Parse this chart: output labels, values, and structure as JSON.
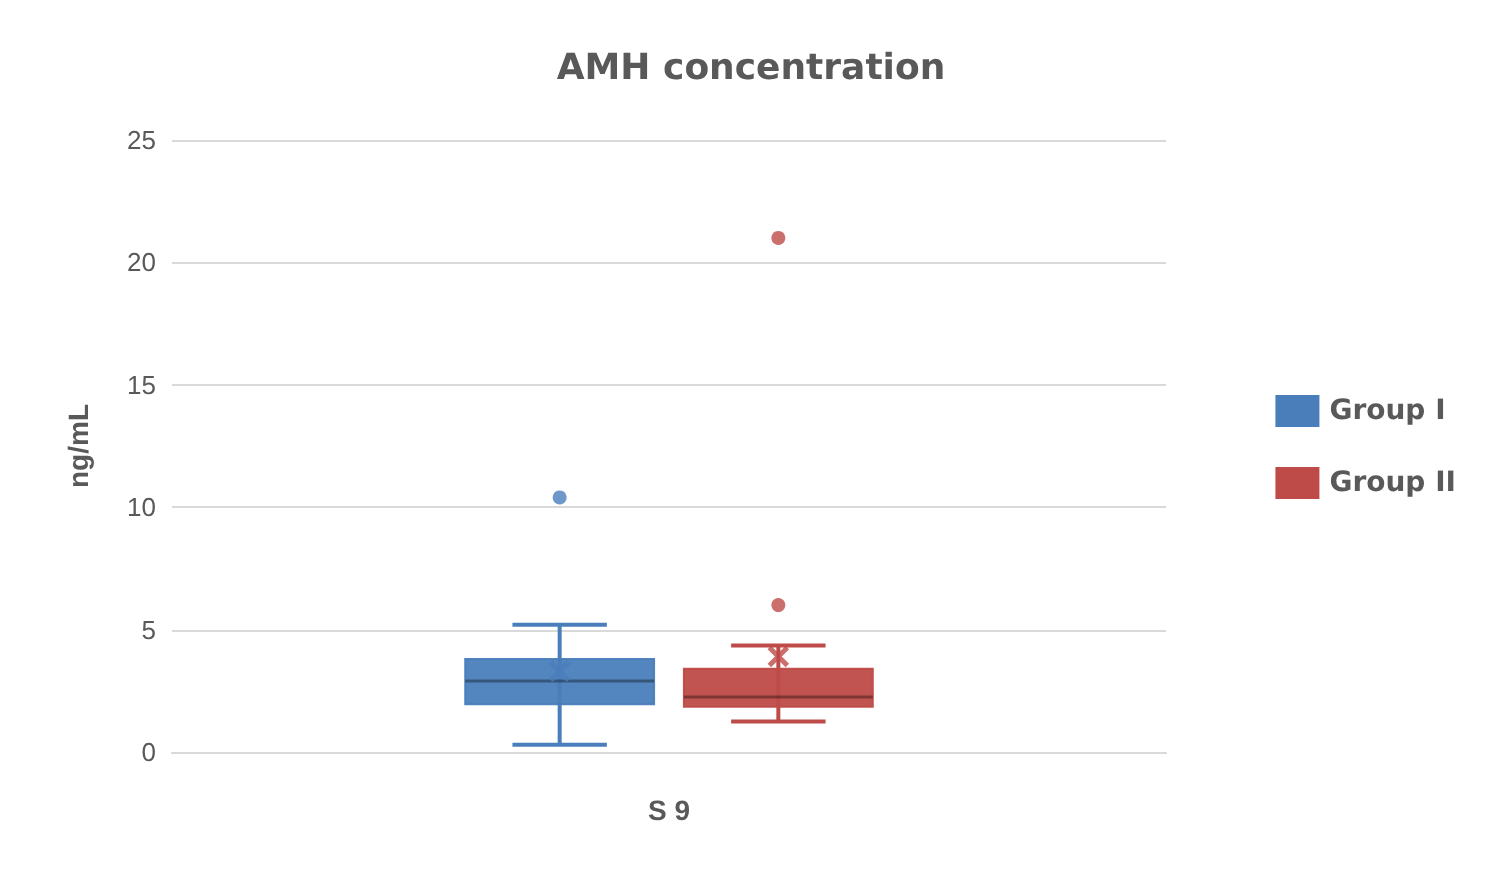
{
  "chart_data": {
    "type": "box",
    "title": "AMH concentration",
    "ylabel": "ng/mL",
    "categories": [
      "S 9"
    ],
    "series": [
      {
        "name": "Group I",
        "color": "#4a7ebb",
        "boxes": [
          {
            "low": 0.3,
            "q1": 1.95,
            "median": 2.9,
            "q3": 3.8,
            "high": 5.2,
            "mean": 3.3,
            "outliers": [
              10.4
            ]
          }
        ]
      },
      {
        "name": "Group II",
        "color": "#be4b48",
        "boxes": [
          {
            "low": 1.25,
            "q1": 1.85,
            "median": 2.25,
            "q3": 3.4,
            "high": 4.35,
            "mean": 3.9,
            "outliers": [
              6.0,
              21.0
            ]
          }
        ]
      }
    ],
    "ylim": [
      0,
      25
    ],
    "yticks": [
      0,
      5,
      10,
      15,
      20,
      25
    ],
    "grid": "y",
    "legend": "right"
  }
}
